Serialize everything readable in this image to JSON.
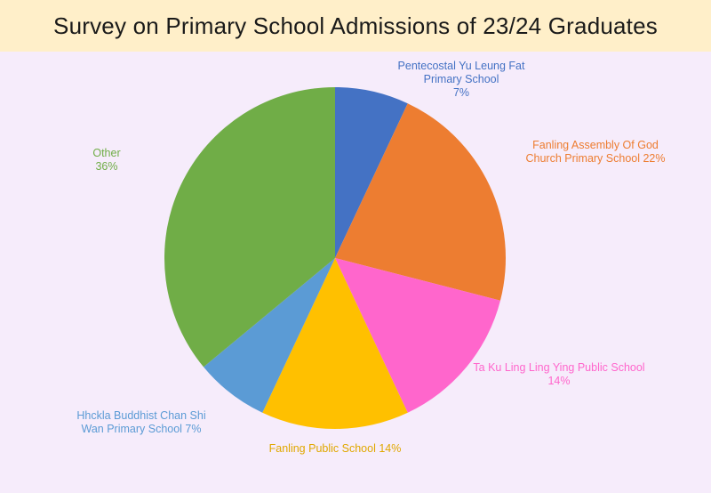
{
  "colors": {
    "title_band": "#ffefc9",
    "plot_background": "#f6ecfb"
  },
  "chart_data": {
    "type": "pie",
    "title": "Survey on Primary School Admissions of 23/24 Graduates",
    "slices": [
      {
        "label": "Pentecostal Yu Leung Fat\nPrimary School\n7%",
        "value": 7,
        "color": "#4472c4"
      },
      {
        "label": "Fanling Assembly Of God\nChurch Primary School 22%",
        "value": 22,
        "color": "#ed7d31"
      },
      {
        "label": "Ta Ku Ling Ling Ying Public School\n14%",
        "value": 14,
        "color": "#ff66cc"
      },
      {
        "label": "Fanling Public School 14%",
        "value": 14,
        "color": "#ffc000"
      },
      {
        "label": "Hhckla Buddhist Chan Shi\nWan Primary School 7%",
        "value": 7,
        "color": "#5b9bd5"
      },
      {
        "label": "Other\n36%",
        "value": 36,
        "color": "#70ad47"
      }
    ],
    "start_angle": "12 o'clock",
    "direction": "clockwise",
    "legend": "none"
  }
}
